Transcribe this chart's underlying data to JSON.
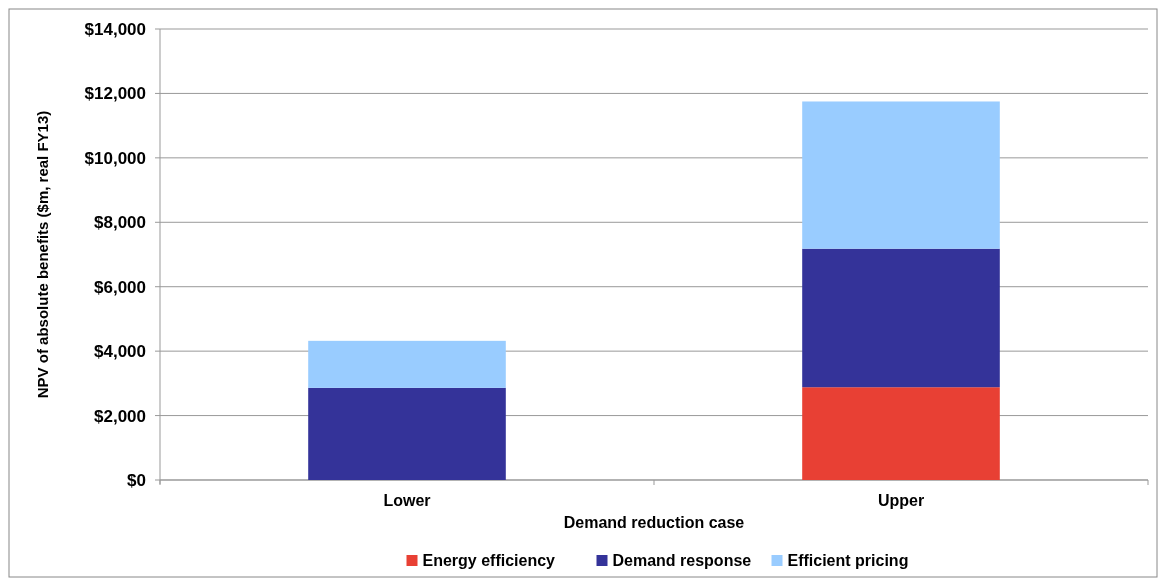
{
  "chart_data": {
    "type": "bar",
    "stacked": true,
    "xlabel": "Demand reduction case",
    "ylabel": "NPV of absolute benefits ($m, real FY13)",
    "categories": [
      "Lower",
      "Upper"
    ],
    "series": [
      {
        "name": "Energy efficiency",
        "color": "#e84034",
        "values": [
          0,
          2880
        ]
      },
      {
        "name": "Demand response",
        "color": "#343399",
        "values": [
          2860,
          4300
        ]
      },
      {
        "name": "Efficient pricing",
        "color": "#99ccff",
        "values": [
          1460,
          4570
        ]
      }
    ],
    "ylim": [
      0,
      14000
    ],
    "yticks": [
      {
        "value": 0,
        "label": "$0"
      },
      {
        "value": 2000,
        "label": "$2,000"
      },
      {
        "value": 4000,
        "label": "$4,000"
      },
      {
        "value": 6000,
        "label": "$6,000"
      },
      {
        "value": 8000,
        "label": "$8,000"
      },
      {
        "value": 10000,
        "label": "$10,000"
      },
      {
        "value": 12000,
        "label": "$12,000"
      },
      {
        "value": 14000,
        "label": "$14,000"
      }
    ],
    "grid": "y",
    "legend": "bottom"
  }
}
